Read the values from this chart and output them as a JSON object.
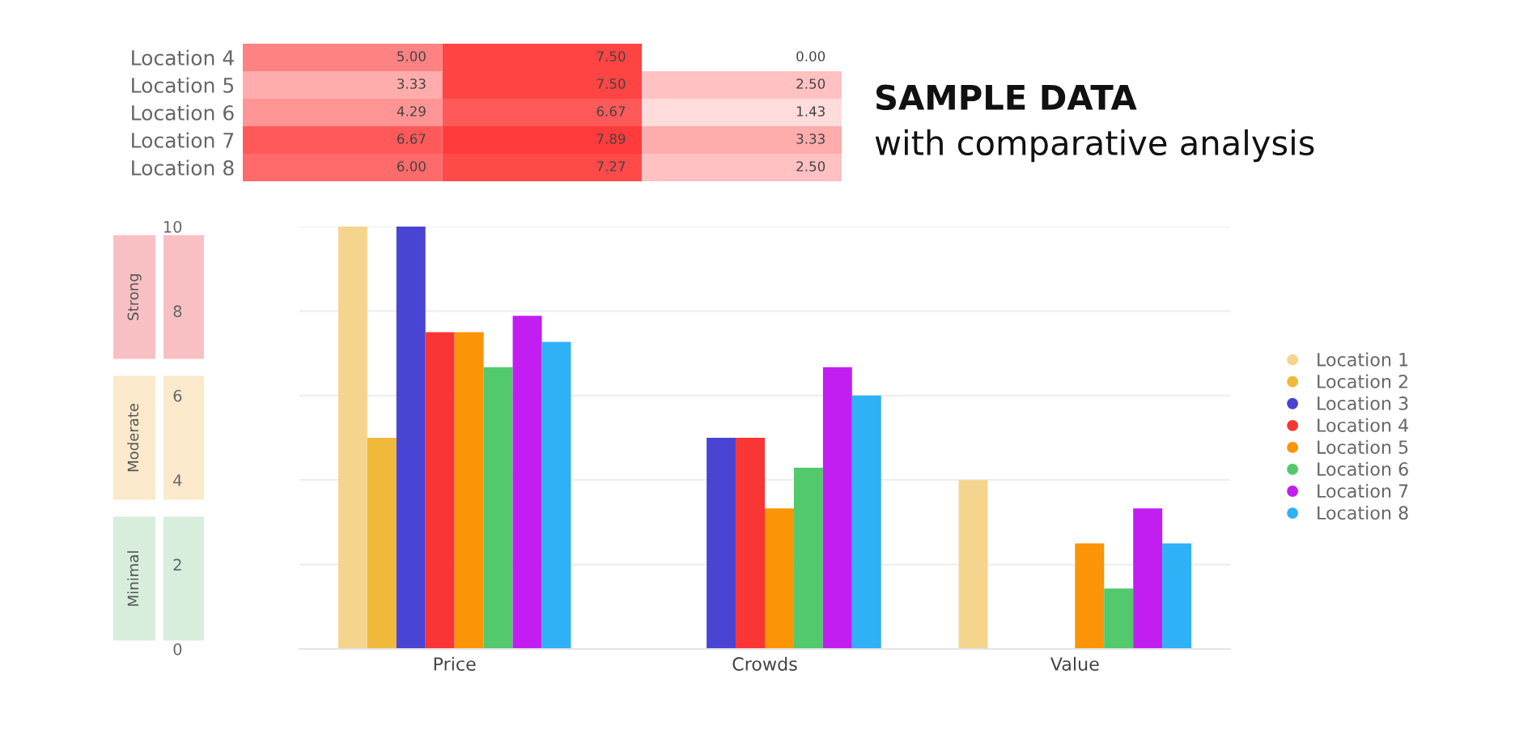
{
  "chart_data": [
    {
      "type": "heatmap",
      "categories": [
        null,
        null,
        null
      ],
      "y_categories": [
        "Location 4",
        "Location 5",
        "Location 6",
        "Location 7",
        "Location 8"
      ],
      "cells": [
        [
          5.0,
          7.5,
          0.0
        ],
        [
          3.33,
          7.5,
          2.5
        ],
        [
          4.29,
          6.67,
          1.43
        ],
        [
          6.67,
          7.89,
          3.33
        ],
        [
          6.0,
          7.27,
          2.5
        ]
      ],
      "cell_labels": [
        [
          "5.00",
          "7.50",
          "0.00"
        ],
        [
          "3.33",
          "7.50",
          "2.50"
        ],
        [
          "4.29",
          "6.67",
          "1.43"
        ],
        [
          "6.67",
          "7.89",
          "3.33"
        ],
        [
          "6.00",
          "7.27",
          "2.50"
        ]
      ]
    },
    {
      "type": "bar",
      "title": "SAMPLE DATA",
      "subtitle": "with comparative analysis",
      "categories": [
        "Price",
        "Crowds",
        "Value"
      ],
      "series": [
        {
          "name": "Location 1",
          "color": "#f5d48e",
          "values": [
            10,
            null,
            4
          ]
        },
        {
          "name": "Location 2",
          "color": "#f0b93a",
          "values": [
            5,
            null,
            null
          ]
        },
        {
          "name": "Location 3",
          "color": "#4a44d4",
          "values": [
            10,
            5,
            null
          ]
        },
        {
          "name": "Location 4",
          "color": "#fa3535",
          "values": [
            7.5,
            5,
            0
          ]
        },
        {
          "name": "Location 5",
          "color": "#fb9407",
          "values": [
            7.5,
            3.33,
            2.5
          ]
        },
        {
          "name": "Location 6",
          "color": "#52c96c",
          "values": [
            6.67,
            4.29,
            1.43
          ]
        },
        {
          "name": "Location 7",
          "color": "#c21ef2",
          "values": [
            7.89,
            6.67,
            3.33
          ]
        },
        {
          "name": "Location 8",
          "color": "#2eb1f7",
          "values": [
            7.27,
            6.0,
            2.5
          ]
        }
      ],
      "ylim": [
        0,
        10
      ],
      "yticks": [
        0,
        2,
        4,
        6,
        8,
        10
      ],
      "grid": "y",
      "legend": "right",
      "annotations": [
        "Minimal",
        "Moderate",
        "Strong"
      ]
    }
  ]
}
